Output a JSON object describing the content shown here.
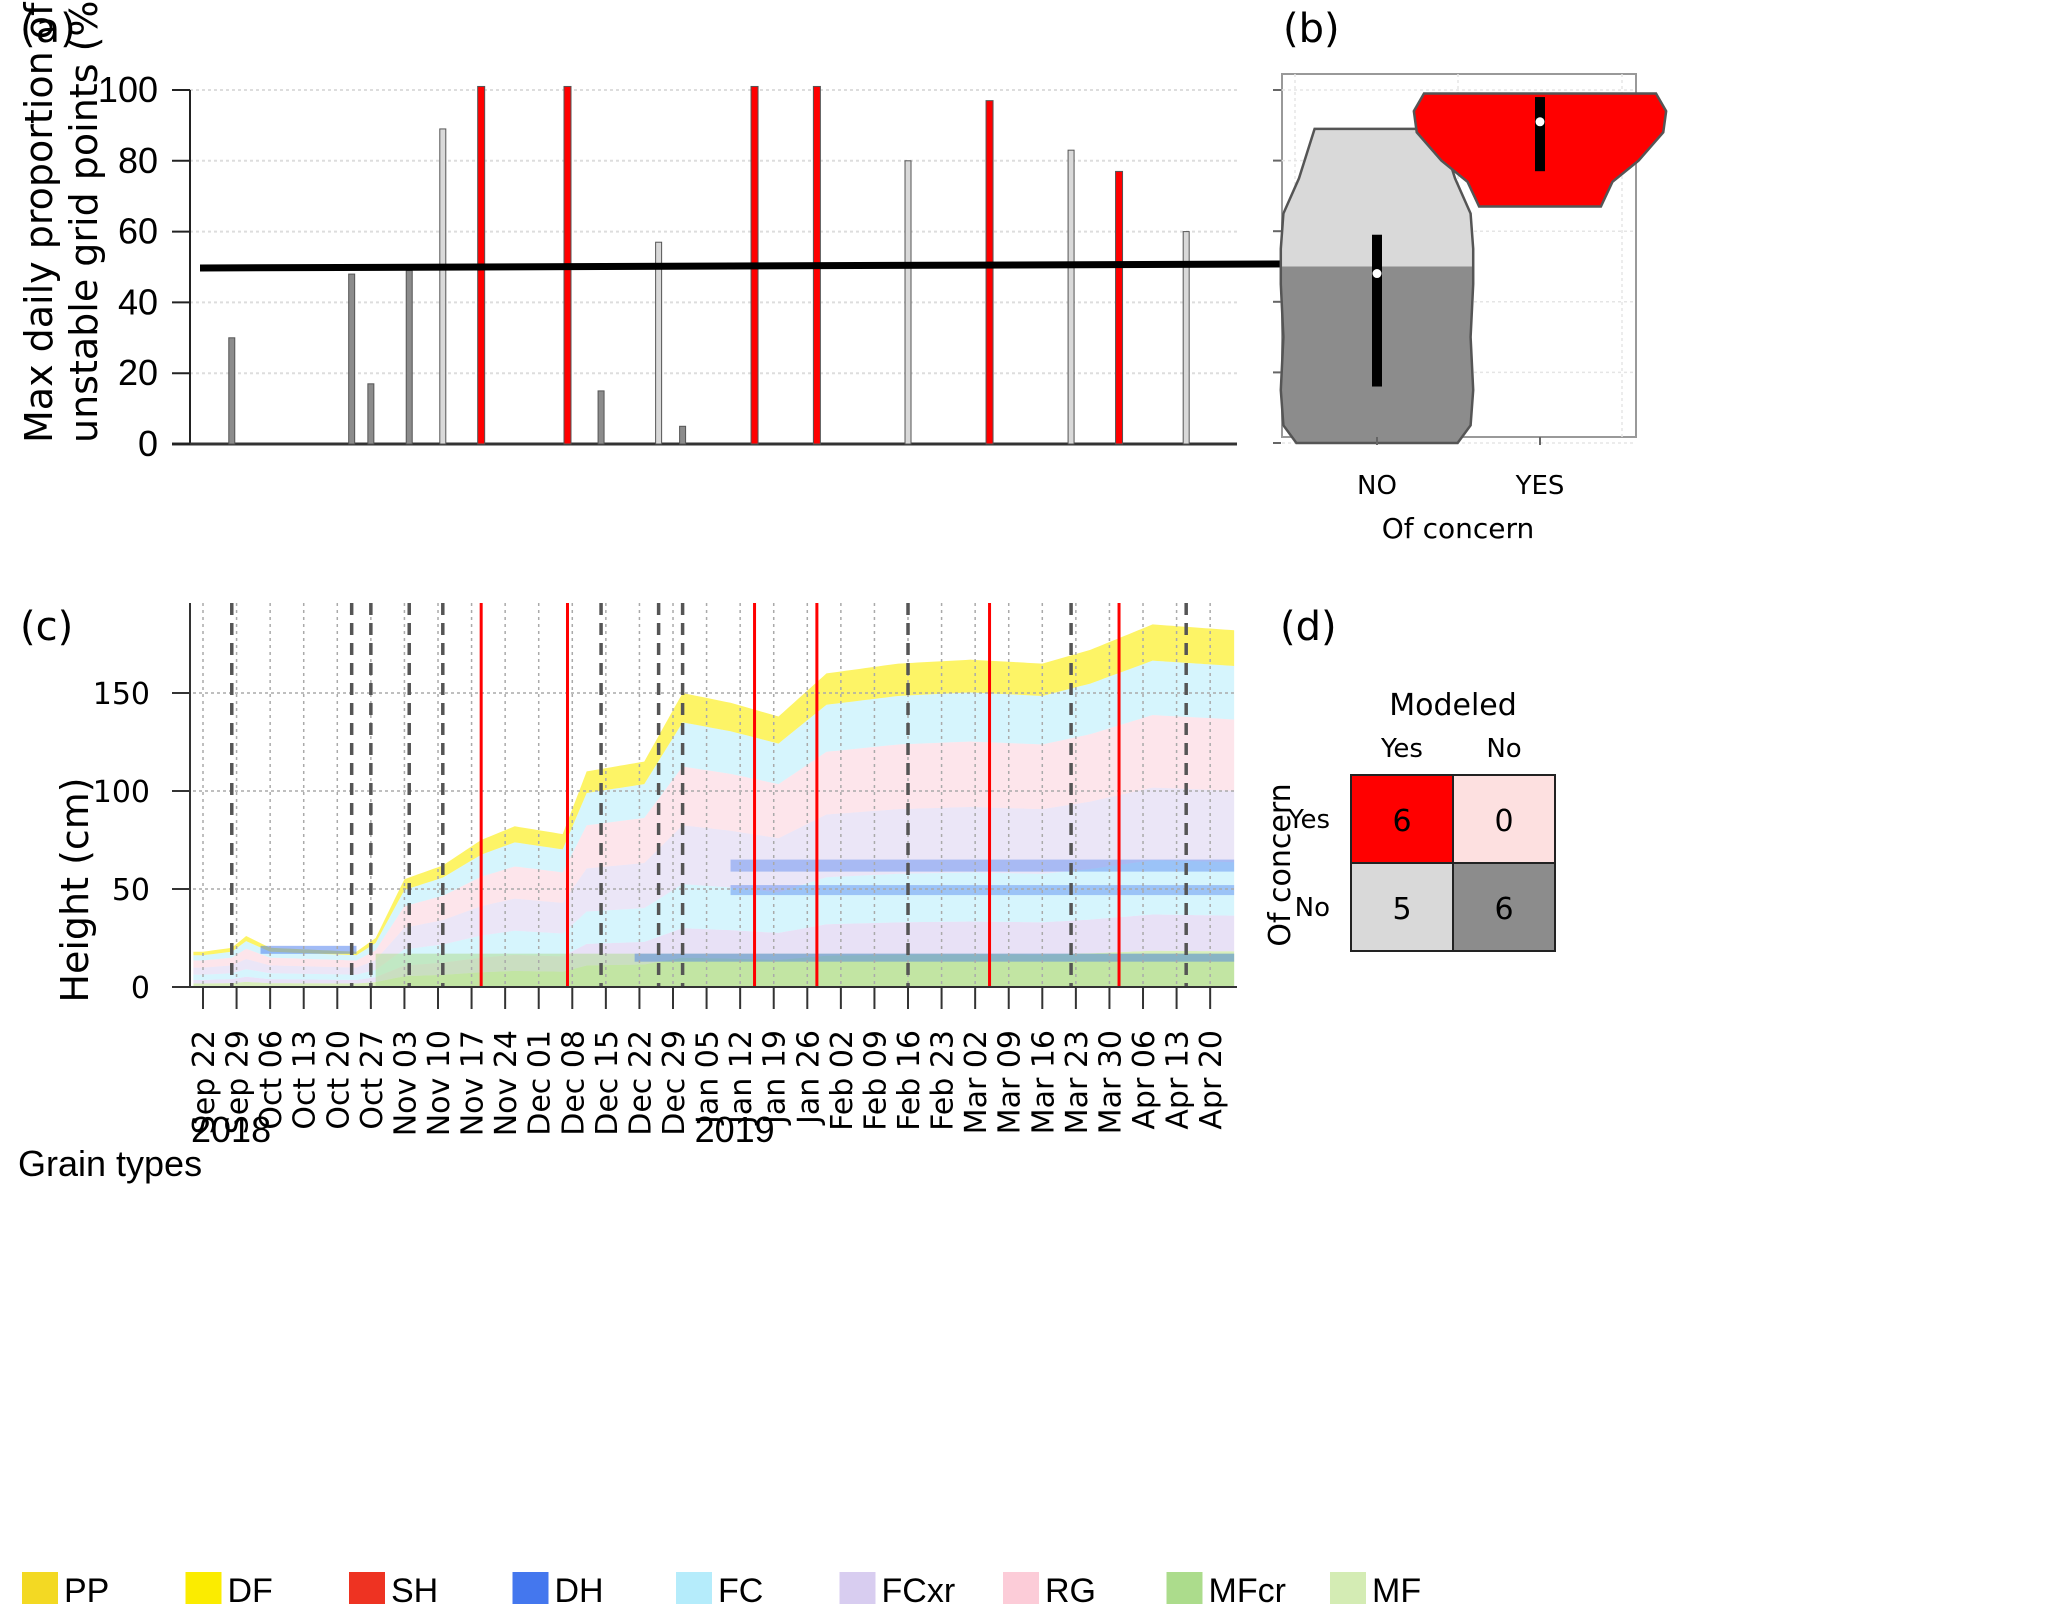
{
  "panel_labels": {
    "a": "(a)",
    "b": "(b)",
    "c": "(c)",
    "d": "(d)"
  },
  "colors": {
    "of_concern_yes": "#ff0000",
    "modeled_yes_not_concern": "#d9d9d9",
    "modeled_no_not_concern": "#8c8c8c",
    "threshold_line": "#000000",
    "matrix_no_concern_modeled_no": "#fde0e0"
  },
  "chart_data": [
    {
      "id": "a",
      "type": "bar",
      "title": "",
      "xlabel": "",
      "ylabel": "Max daily proportion of unstable grid points (%)",
      "ylabel_lines": [
        "Max daily proportion of",
        "unstable grid points (%)"
      ],
      "ylim": [
        0,
        100
      ],
      "yticks": [
        0,
        20,
        40,
        60,
        80,
        100
      ],
      "grid": true,
      "threshold": 50,
      "x_start": "2018-09-22",
      "x_end": "2019-04-20",
      "bars": [
        {
          "date": "2018-09-28",
          "value": 30,
          "class": "modeled_no"
        },
        {
          "date": "2018-10-23",
          "value": 48,
          "class": "modeled_no"
        },
        {
          "date": "2018-10-27",
          "value": 17,
          "class": "modeled_no"
        },
        {
          "date": "2018-11-04",
          "value": 49,
          "class": "modeled_no"
        },
        {
          "date": "2018-11-11",
          "value": 89,
          "class": "modeled_yes"
        },
        {
          "date": "2018-11-19",
          "value": 101,
          "class": "of_concern"
        },
        {
          "date": "2018-12-07",
          "value": 101,
          "class": "of_concern"
        },
        {
          "date": "2018-12-14",
          "value": 15,
          "class": "modeled_no"
        },
        {
          "date": "2018-12-26",
          "value": 57,
          "class": "modeled_yes"
        },
        {
          "date": "2018-12-31",
          "value": 5,
          "class": "modeled_no"
        },
        {
          "date": "2019-01-15",
          "value": 101,
          "class": "of_concern"
        },
        {
          "date": "2019-01-28",
          "value": 101,
          "class": "of_concern"
        },
        {
          "date": "2019-02-16",
          "value": 80,
          "class": "modeled_yes"
        },
        {
          "date": "2019-03-05",
          "value": 97,
          "class": "of_concern"
        },
        {
          "date": "2019-03-22",
          "value": 83,
          "class": "modeled_yes"
        },
        {
          "date": "2019-04-01",
          "value": 77,
          "class": "of_concern"
        },
        {
          "date": "2019-04-15",
          "value": 60,
          "class": "modeled_yes"
        }
      ]
    },
    {
      "id": "b",
      "type": "violin",
      "xlabel": "Of concern",
      "ylim": [
        0,
        100
      ],
      "categories": [
        "NO",
        "YES"
      ],
      "series": [
        {
          "name": "NO",
          "min": 0,
          "max": 89,
          "q1": 16,
          "q3": 59,
          "median": 48
        },
        {
          "name": "YES",
          "min": 67,
          "max": 99,
          "q1": 77,
          "q3": 98,
          "median": 91
        }
      ],
      "threshold": 50
    },
    {
      "id": "c",
      "type": "area",
      "ylabel": "Height (cm)",
      "ylim": [
        0,
        195
      ],
      "yticks": [
        0,
        50,
        100,
        150
      ],
      "grid": true,
      "xticks": [
        "Sep 22",
        "Sep 29",
        "Oct 06",
        "Oct 13",
        "Oct 20",
        "Oct 27",
        "Nov 03",
        "Nov 10",
        "Nov 17",
        "Nov 24",
        "Dec 01",
        "Dec 08",
        "Dec 15",
        "Dec 22",
        "Dec 29",
        "Jan 05",
        "Jan 12",
        "Jan 19",
        "Jan 26",
        "Feb 02",
        "Feb 09",
        "Feb 16",
        "Feb 23",
        "Mar 02",
        "Mar 09",
        "Mar 16",
        "Mar 23",
        "Mar 30",
        "Apr 06",
        "Apr 13",
        "Apr 20"
      ],
      "year_labels": [
        {
          "label": "2018",
          "at": "Sep 22"
        },
        {
          "label": "2019",
          "at": "Jan 05"
        }
      ],
      "snow_height": [
        {
          "day": 0,
          "h": 18
        },
        {
          "day": 6,
          "h": 20
        },
        {
          "day": 9,
          "h": 26
        },
        {
          "day": 14,
          "h": 20
        },
        {
          "day": 32,
          "h": 18
        },
        {
          "day": 36,
          "h": 25
        },
        {
          "day": 42,
          "h": 55
        },
        {
          "day": 50,
          "h": 62
        },
        {
          "day": 58,
          "h": 75
        },
        {
          "day": 65,
          "h": 82
        },
        {
          "day": 75,
          "h": 78
        },
        {
          "day": 80,
          "h": 110
        },
        {
          "day": 92,
          "h": 115
        },
        {
          "day": 100,
          "h": 150
        },
        {
          "day": 110,
          "h": 145
        },
        {
          "day": 120,
          "h": 138
        },
        {
          "day": 130,
          "h": 160
        },
        {
          "day": 145,
          "h": 165
        },
        {
          "day": 160,
          "h": 167
        },
        {
          "day": 175,
          "h": 165
        },
        {
          "day": 185,
          "h": 172
        },
        {
          "day": 198,
          "h": 185
        },
        {
          "day": 215,
          "h": 182
        }
      ],
      "event_lines": [
        {
          "date": "2018-09-28",
          "style": "dashed"
        },
        {
          "date": "2018-10-23",
          "style": "dashed"
        },
        {
          "date": "2018-10-27",
          "style": "dashed"
        },
        {
          "date": "2018-11-04",
          "style": "dashed"
        },
        {
          "date": "2018-11-11",
          "style": "dashed"
        },
        {
          "date": "2018-11-19",
          "style": "red"
        },
        {
          "date": "2018-12-07",
          "style": "red"
        },
        {
          "date": "2018-12-14",
          "style": "dashed"
        },
        {
          "date": "2018-12-26",
          "style": "dashed"
        },
        {
          "date": "2018-12-31",
          "style": "dashed"
        },
        {
          "date": "2019-01-15",
          "style": "red"
        },
        {
          "date": "2019-01-28",
          "style": "red"
        },
        {
          "date": "2019-02-16",
          "style": "dashed"
        },
        {
          "date": "2019-03-05",
          "style": "red"
        },
        {
          "date": "2019-03-22",
          "style": "dashed"
        },
        {
          "date": "2019-04-01",
          "style": "red"
        },
        {
          "date": "2019-04-15",
          "style": "dashed"
        }
      ]
    },
    {
      "id": "d",
      "type": "table",
      "title": "Modeled",
      "col_labels": [
        "Yes",
        "No"
      ],
      "row_title": "Of concern",
      "row_labels": [
        "Yes",
        "No"
      ],
      "values": [
        [
          6,
          0
        ],
        [
          5,
          6
        ]
      ]
    }
  ],
  "legend": {
    "title": "Grain types",
    "items": [
      {
        "label": "PP",
        "color": "#f3d923"
      },
      {
        "label": "DF",
        "color": "#fbec00"
      },
      {
        "label": "SH",
        "color": "#ee3322"
      },
      {
        "label": "DH",
        "color": "#4477ee"
      },
      {
        "label": "FC",
        "color": "#b5ecfb"
      },
      {
        "label": "FCxr",
        "color": "#d8cdf0"
      },
      {
        "label": "RG",
        "color": "#fcccd8"
      },
      {
        "label": "MFcr",
        "color": "#acdc8c"
      },
      {
        "label": "MF",
        "color": "#d4ecb4"
      }
    ]
  }
}
